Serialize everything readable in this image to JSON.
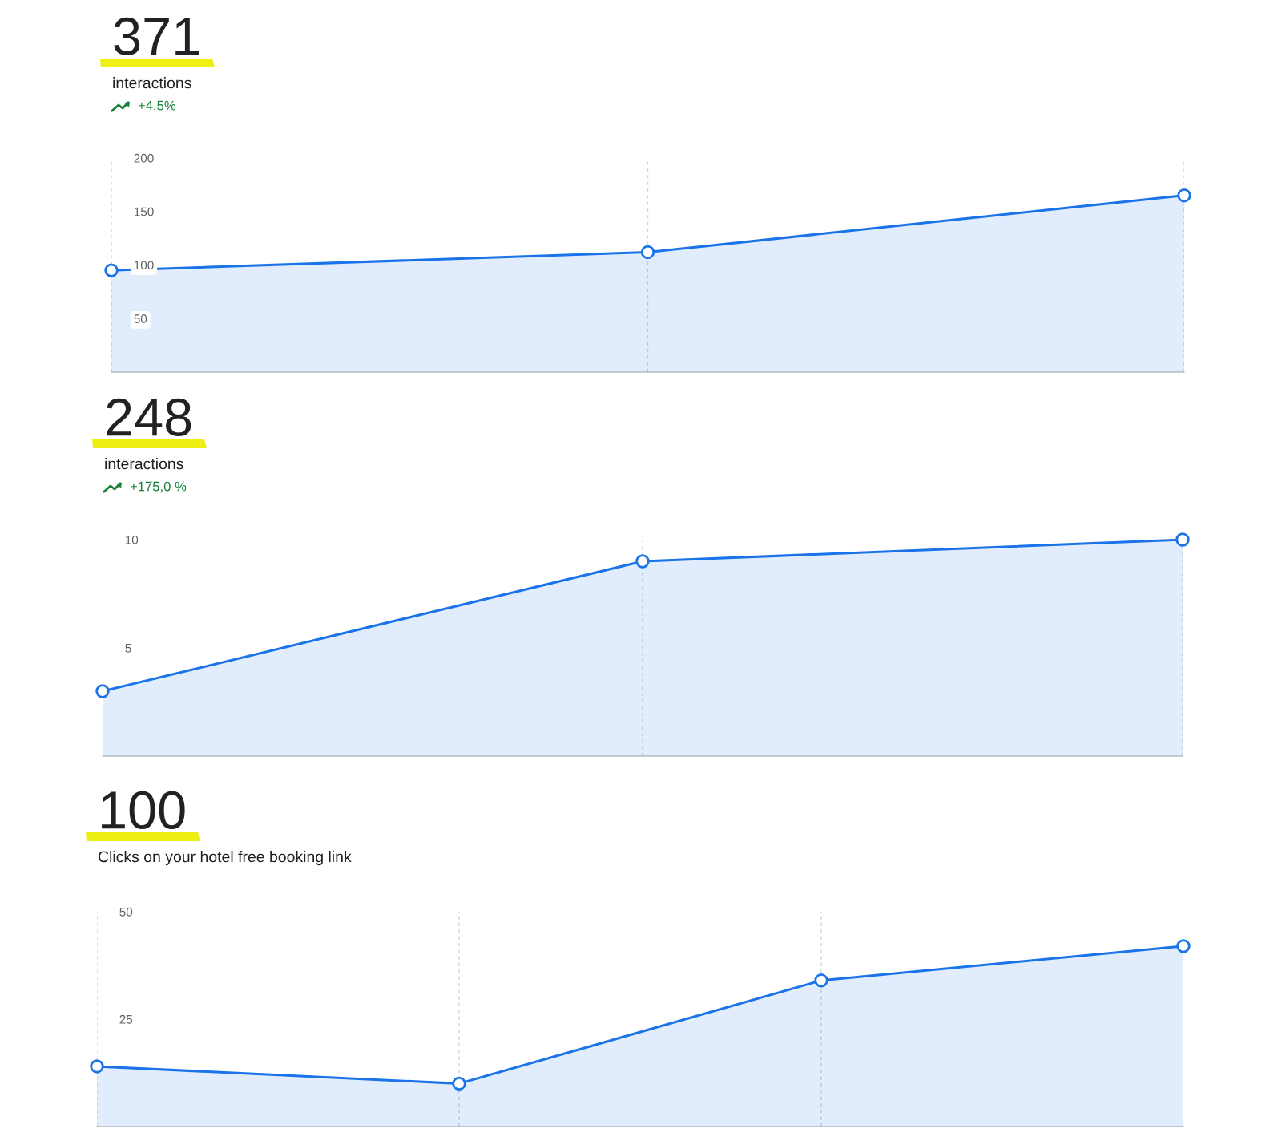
{
  "chart_data": [
    {
      "type": "area",
      "title": "371",
      "subtitle": "interactions",
      "annotations": [
        "+4.5%"
      ],
      "categories": [
        null,
        null,
        null
      ],
      "series": [
        {
          "color": "#1a73e8",
          "values": [
            95,
            112,
            165
          ]
        }
      ],
      "ylim": [
        0,
        200
      ],
      "yticks": [
        50,
        100,
        150,
        200
      ],
      "grid": "x",
      "marker": "circle",
      "line_style": "solid"
    },
    {
      "type": "area",
      "title": "248",
      "subtitle": "interactions",
      "annotations": [
        "+175,0 %"
      ],
      "categories": [
        null,
        null,
        null
      ],
      "series": [
        {
          "color": "#1a73e8",
          "values": [
            3,
            9,
            10
          ]
        }
      ],
      "ylim": [
        0,
        10
      ],
      "yticks": [
        5,
        10
      ],
      "grid": "x",
      "marker": "circle",
      "line_style": "solid"
    },
    {
      "type": "area",
      "title": "100",
      "subtitle": "Clicks on your hotel free booking link",
      "categories": [
        null,
        null,
        null,
        null
      ],
      "series": [
        {
          "color": "#1a73e8",
          "values": [
            14,
            10,
            34,
            42
          ]
        }
      ],
      "ylim": [
        0,
        50
      ],
      "yticks": [
        25,
        50
      ],
      "grid": "x",
      "marker": "circle",
      "line_style": "solid"
    }
  ]
}
